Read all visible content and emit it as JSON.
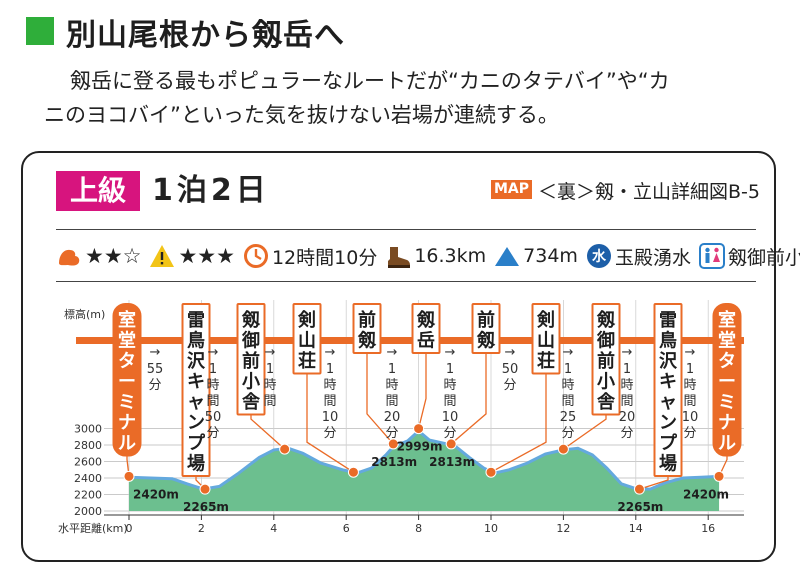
{
  "header": {
    "title": "別山尾根から剱岳へ",
    "lead_line1": "剱岳に登る最もポピュラーなルートだが“カニのタテバイ”や“カ",
    "lead_line2": "ニのヨコバイ”といった気を抜けない岩場が連続する。"
  },
  "card": {
    "level": "上級",
    "duration": "1泊2日",
    "map_label": "MAP",
    "map_ref": "＜裏＞剱・立山詳細図B-5"
  },
  "stats": {
    "stamina_stars": "★★☆",
    "technique_stars": "★★★",
    "time": "12時間10分",
    "distance": "16.3km",
    "elevation_gain": "734m",
    "water": "玉殿湧水",
    "toilet": "剱御前小舎",
    "icons": [
      "stamina-icon",
      "warning-icon",
      "clock-icon",
      "boot-icon",
      "mountain-icon",
      "water-icon",
      "toilet-icon"
    ],
    "colors": {
      "orange": "#ea6b27",
      "profile_fill": "#6cbf8f",
      "profile_top": "#64a9de"
    }
  },
  "chart_data": {
    "type": "area",
    "ylabel": "標高(m)",
    "xlabel": "水平距離(km)",
    "yticks": [
      2000,
      2200,
      2400,
      2600,
      2800,
      3000
    ],
    "xticks": [
      0,
      2,
      4,
      6,
      8,
      10,
      12,
      14,
      16
    ],
    "ylim": [
      2000,
      3000
    ],
    "xlim": [
      0,
      16.3
    ],
    "profile": [
      [
        0,
        2410
      ],
      [
        0.6,
        2400
      ],
      [
        1.2,
        2390
      ],
      [
        1.6,
        2330
      ],
      [
        2.05,
        2265
      ],
      [
        2.5,
        2300
      ],
      [
        3.0,
        2450
      ],
      [
        3.6,
        2650
      ],
      [
        4.0,
        2740
      ],
      [
        4.4,
        2760
      ],
      [
        4.8,
        2700
      ],
      [
        5.3,
        2580
      ],
      [
        5.9,
        2500
      ],
      [
        6.3,
        2460
      ],
      [
        6.7,
        2520
      ],
      [
        7.1,
        2680
      ],
      [
        7.3,
        2780
      ],
      [
        7.7,
        2850
      ],
      [
        8.0,
        2970
      ],
      [
        8.3,
        2860
      ],
      [
        8.6,
        2830
      ],
      [
        9.0,
        2790
      ],
      [
        9.4,
        2650
      ],
      [
        9.8,
        2520
      ],
      [
        10.1,
        2460
      ],
      [
        10.5,
        2500
      ],
      [
        11.0,
        2580
      ],
      [
        11.5,
        2690
      ],
      [
        12.0,
        2740
      ],
      [
        12.4,
        2760
      ],
      [
        12.8,
        2680
      ],
      [
        13.2,
        2520
      ],
      [
        13.6,
        2330
      ],
      [
        14.0,
        2270
      ],
      [
        14.4,
        2265
      ],
      [
        14.8,
        2340
      ],
      [
        15.3,
        2400
      ],
      [
        15.8,
        2410
      ],
      [
        16.3,
        2420
      ]
    ],
    "points": [
      {
        "name": "室堂ターミナル",
        "km": 0,
        "elev": 2420,
        "elev_label": "2420m"
      },
      {
        "name": "雷鳥沢キャンプ場",
        "km": 2.1,
        "elev": 2265,
        "elev_label": "2265m"
      },
      {
        "name": "剱御前小舎",
        "km": 4.3,
        "elev": 2750,
        "elev_label": ""
      },
      {
        "name": "剣山荘",
        "km": 6.2,
        "elev": 2470,
        "elev_label": ""
      },
      {
        "name": "前剱",
        "km": 7.3,
        "elev": 2813,
        "elev_label": "2813m"
      },
      {
        "name": "剱岳",
        "km": 8.0,
        "elev": 2999,
        "elev_label": "2999m"
      },
      {
        "name": "前剱",
        "km": 8.9,
        "elev": 2813,
        "elev_label": "2813m"
      },
      {
        "name": "剣山荘",
        "km": 10.0,
        "elev": 2470,
        "elev_label": ""
      },
      {
        "name": "剱御前小舎",
        "km": 12.0,
        "elev": 2750,
        "elev_label": ""
      },
      {
        "name": "雷鳥沢キャンプ場",
        "km": 14.1,
        "elev": 2265,
        "elev_label": "2265m"
      },
      {
        "name": "室堂ターミナル",
        "km": 16.3,
        "elev": 2420,
        "elev_label": "2420m"
      }
    ],
    "segments": [
      {
        "arrow": "→",
        "time": "55分"
      },
      {
        "arrow": "→",
        "time": "1時間50分"
      },
      {
        "arrow": "→",
        "time": "1時間"
      },
      {
        "arrow": "→",
        "time": "1時間10分"
      },
      {
        "arrow": "→",
        "time": "1時間20分"
      },
      {
        "arrow": "→",
        "time": "1時間10分"
      },
      {
        "arrow": "→",
        "time": "50分"
      },
      {
        "arrow": "→",
        "time": "1時間25分"
      },
      {
        "arrow": "→",
        "time": "1時間20分"
      },
      {
        "arrow": "→",
        "time": "1時間10分"
      }
    ]
  }
}
